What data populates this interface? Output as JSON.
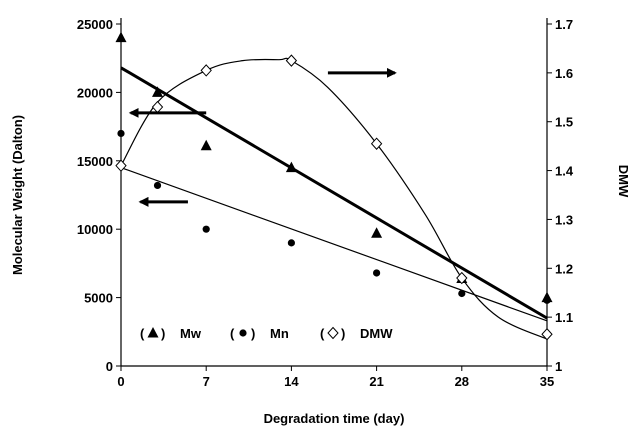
{
  "chart_data": {
    "type": "scatter",
    "xlabel": "Degradation time (day)",
    "ylabel": "Molecular Weight (Dalton)",
    "y2label": "DMW",
    "x_ticks": [
      0,
      7,
      14,
      21,
      28,
      35
    ],
    "y_ticks": [
      0,
      5000,
      10000,
      15000,
      20000,
      25000
    ],
    "y2_ticks": [
      1,
      1.1,
      1.2,
      1.3,
      1.4,
      1.5,
      1.6,
      1.7
    ],
    "xlim": [
      0,
      35
    ],
    "ylim": [
      0,
      25000
    ],
    "y2lim": [
      1,
      1.7
    ],
    "grid": false,
    "series": [
      {
        "name": "Mw",
        "marker": "triangle",
        "axis": "left",
        "x": [
          0,
          3,
          7,
          14,
          21,
          28,
          35
        ],
        "y": [
          24000,
          20000,
          16100,
          14500,
          9700,
          6400,
          5000
        ],
        "fit": "linear",
        "fit_line": [
          [
            0,
            21800
          ],
          [
            35,
            3500
          ]
        ],
        "fit_width": 3
      },
      {
        "name": "Mn",
        "marker": "circle",
        "axis": "left",
        "x": [
          0,
          3,
          7,
          14,
          21,
          28,
          35
        ],
        "y": [
          17000,
          13200,
          10000,
          9000,
          6800,
          5300,
          4800
        ],
        "fit": "linear",
        "fit_line": [
          [
            0,
            14500
          ],
          [
            35,
            3300
          ]
        ],
        "fit_width": 1.2
      },
      {
        "name": "DMW",
        "marker": "diamond-open",
        "axis": "right",
        "x": [
          0,
          3,
          7,
          14,
          21,
          28,
          35
        ],
        "y": [
          1.41,
          1.53,
          1.605,
          1.625,
          1.455,
          1.18,
          1.065
        ],
        "fit": "smooth",
        "fit_curve": [
          [
            0,
            1.41
          ],
          [
            3,
            1.54
          ],
          [
            7,
            1.605
          ],
          [
            10,
            1.625
          ],
          [
            13,
            1.627
          ],
          [
            14,
            1.625
          ],
          [
            17,
            1.57
          ],
          [
            21,
            1.455
          ],
          [
            25,
            1.31
          ],
          [
            28,
            1.18
          ],
          [
            31,
            1.1
          ],
          [
            35,
            1.055
          ]
        ],
        "fit_width": 1.2
      }
    ],
    "legend": {
      "placement": "bottom-left",
      "entries": [
        {
          "open": "(",
          "marker": "triangle",
          "close": ")",
          "name": "Mw"
        },
        {
          "open": "(",
          "marker": "circle",
          "close": ")",
          "name": "Mn"
        },
        {
          "open": "(",
          "marker": "diamond-open",
          "close": ")",
          "name": "DMW"
        }
      ]
    },
    "annotations": [
      {
        "type": "arrow",
        "direction": "left",
        "axis": "left",
        "x_from": 7,
        "x_to": 0.8,
        "y": 18500
      },
      {
        "type": "arrow",
        "direction": "left",
        "axis": "left",
        "x_from": 5.5,
        "x_to": 1.6,
        "y": 12000
      },
      {
        "type": "arrow",
        "direction": "right",
        "axis": "right",
        "x_from": 17,
        "x_to": 22.5,
        "y": 1.6
      }
    ]
  }
}
